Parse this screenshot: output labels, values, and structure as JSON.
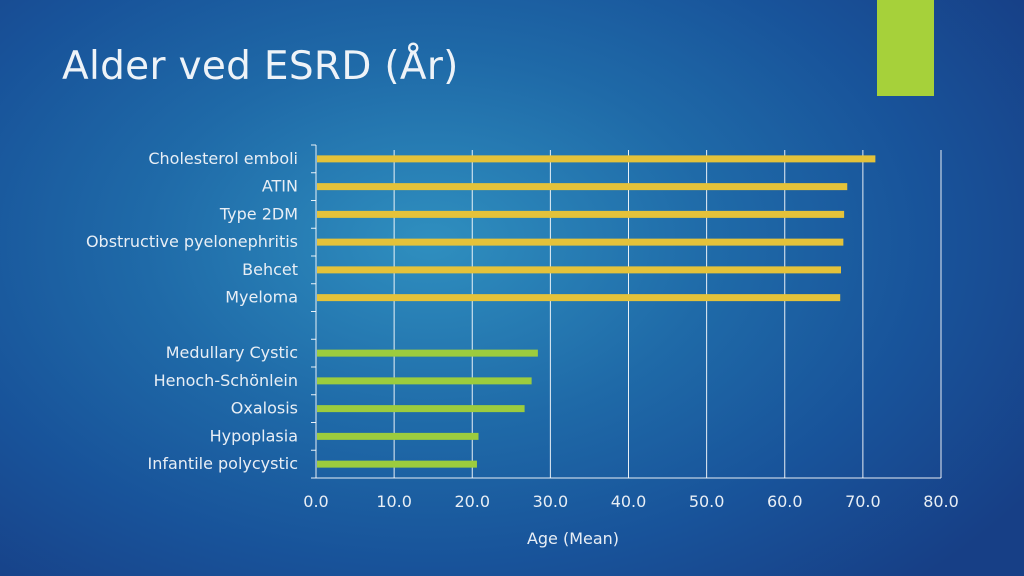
{
  "slide": {
    "title": "Alder ved ESRD (År)"
  },
  "colors": {
    "background": "#1f6aa8",
    "accent": "#a6d13a",
    "bar_top_group": "#e4c23a",
    "bar_bottom_group": "#9ccc3e",
    "text": "#e8eef5"
  },
  "chart_data": {
    "type": "bar",
    "orientation": "horizontal",
    "categories": [
      "Cholesterol emboli",
      "ATIN",
      "Type 2DM",
      "Obstructive pyelonephritis",
      "Behcet",
      "Myeloma",
      "",
      "Medullary Cystic",
      "Henoch-Schönlein",
      "Oxalosis",
      "Hypoplasia",
      "Infantile polycystic"
    ],
    "values": [
      71.6,
      68.0,
      67.6,
      67.5,
      67.2,
      67.1,
      null,
      28.4,
      27.6,
      26.7,
      20.8,
      20.6
    ],
    "bar_groups": [
      "top",
      "top",
      "top",
      "top",
      "top",
      "top",
      null,
      "bottom",
      "bottom",
      "bottom",
      "bottom",
      "bottom"
    ],
    "title": "",
    "xlabel": "Age (Mean)",
    "ylabel": "",
    "xlim": [
      0,
      80
    ],
    "xticks": [
      0,
      10,
      20,
      30,
      40,
      50,
      60,
      70,
      80
    ],
    "xtick_labels": [
      "0.0",
      "10.0",
      "20.0",
      "30.0",
      "40.0",
      "50.0",
      "60.0",
      "70.0",
      "80.0"
    ],
    "grid": "vertical",
    "legend": "none"
  }
}
